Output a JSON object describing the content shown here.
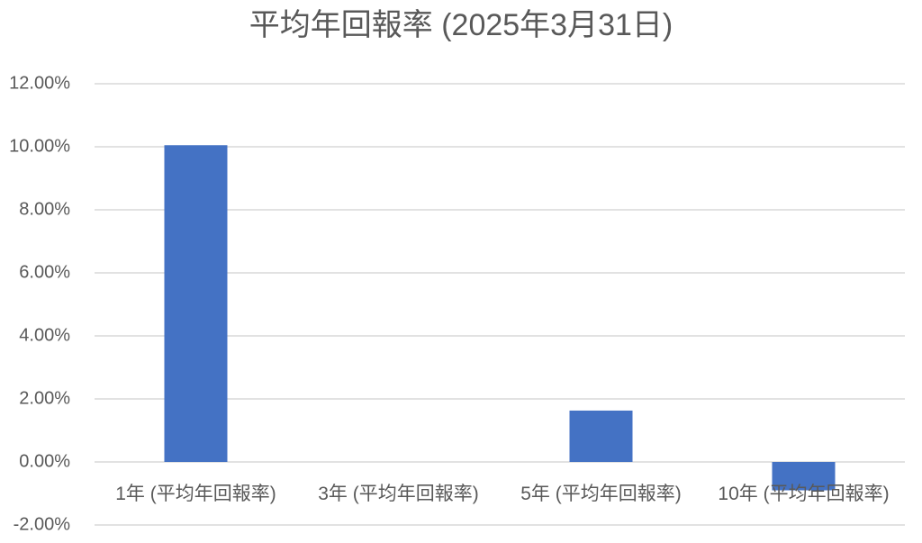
{
  "chart_data": {
    "type": "bar",
    "title": "平均年回報率 (2025年3月31日)",
    "categories": [
      "1年 (平均年回報率)",
      "3年 (平均年回報率)",
      "5年 (平均年回報率)",
      "10年 (平均年回報率)"
    ],
    "values": [
      10.05,
      null,
      1.63,
      -0.9
    ],
    "color": "#4472c4",
    "ylim": [
      -2,
      12
    ],
    "yticks": [
      {
        "value": -2,
        "label": "-2.00%"
      },
      {
        "value": 0,
        "label": "0.00%"
      },
      {
        "value": 2,
        "label": "2.00%"
      },
      {
        "value": 4,
        "label": "4.00%"
      },
      {
        "value": 6,
        "label": "6.00%"
      },
      {
        "value": 8,
        "label": "8.00%"
      },
      {
        "value": 10,
        "label": "10.00%"
      },
      {
        "value": 12,
        "label": "12.00%"
      }
    ],
    "grid": true
  }
}
